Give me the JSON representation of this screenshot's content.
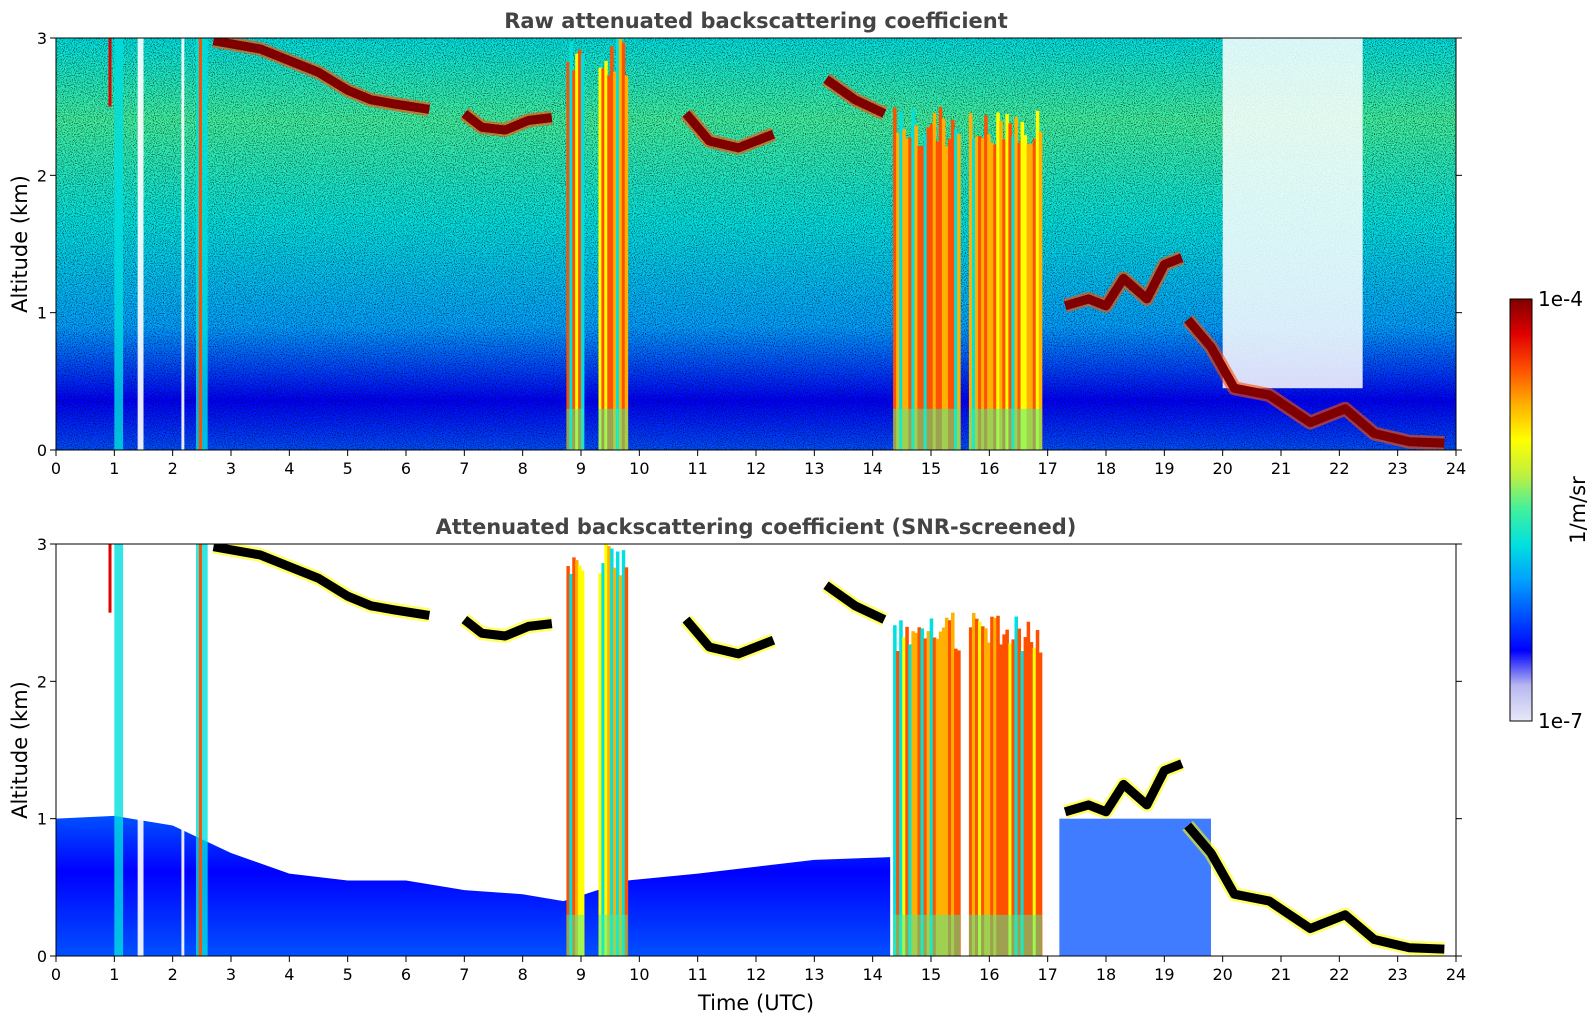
{
  "colormap": {
    "stops": [
      "#e8e8f8",
      "#b8b8f0",
      "#0000ff",
      "#0050ff",
      "#00a0ff",
      "#00e0e0",
      "#40f0a0",
      "#c0f040",
      "#ffff00",
      "#ffb000",
      "#ff5000",
      "#e00000",
      "#800000",
      "#000000"
    ]
  },
  "chart_data": [
    {
      "type": "heatmap",
      "title": "Raw attenuated backscattering coefficient",
      "xlabel": "",
      "ylabel": "Altitude (km)",
      "xlim": [
        0,
        24
      ],
      "ylim": [
        0,
        3
      ],
      "xticks": [
        "0",
        "1",
        "2",
        "3",
        "4",
        "5",
        "6",
        "7",
        "8",
        "9",
        "10",
        "11",
        "12",
        "13",
        "14",
        "15",
        "16",
        "17",
        "18",
        "19",
        "20",
        "21",
        "22",
        "23",
        "24"
      ],
      "yticks": [
        "0",
        "1",
        "2",
        "3"
      ],
      "screened": false,
      "layers": [
        {
          "kind": "cloud_line",
          "x": [
            2.7,
            3.5,
            4.5,
            5.0,
            5.4,
            5.8,
            6.4
          ],
          "y": [
            2.98,
            2.92,
            2.75,
            2.62,
            2.55,
            2.52,
            2.48
          ]
        },
        {
          "kind": "cloud_line",
          "x": [
            7.0,
            7.3,
            7.7,
            8.1,
            8.5
          ],
          "y": [
            2.45,
            2.35,
            2.33,
            2.4,
            2.42
          ]
        },
        {
          "kind": "cloud_line",
          "x": [
            10.8,
            11.2,
            11.7,
            12.3
          ],
          "y": [
            2.45,
            2.25,
            2.2,
            2.3
          ]
        },
        {
          "kind": "cloud_line",
          "x": [
            13.2,
            13.7,
            14.2
          ],
          "y": [
            2.7,
            2.55,
            2.45
          ]
        },
        {
          "kind": "cloud_line",
          "x": [
            17.3,
            17.7,
            18.0,
            18.3,
            18.7,
            19.0,
            19.3
          ],
          "y": [
            1.05,
            1.1,
            1.05,
            1.25,
            1.1,
            1.35,
            1.4
          ]
        },
        {
          "kind": "cloud_line",
          "x": [
            19.4,
            19.8,
            20.2,
            20.8,
            21.5,
            22.1,
            22.6,
            23.2,
            23.8
          ],
          "y": [
            0.95,
            0.75,
            0.45,
            0.4,
            0.2,
            0.3,
            0.12,
            0.06,
            0.05
          ]
        },
        {
          "kind": "plume",
          "x0": 14.35,
          "x1": 15.5,
          "top": 2.5
        },
        {
          "kind": "plume",
          "x0": 15.65,
          "x1": 16.9,
          "top": 2.5
        },
        {
          "kind": "plume",
          "x0": 8.75,
          "x1": 9.05,
          "top": 3.0
        },
        {
          "kind": "plume",
          "x0": 9.3,
          "x1": 9.8,
          "top": 3.0
        }
      ]
    },
    {
      "type": "heatmap",
      "title": "Attenuated backscattering coefficient (SNR-screened)",
      "xlabel": "Time (UTC)",
      "ylabel": "Altitude (km)",
      "xlim": [
        0,
        24
      ],
      "ylim": [
        0,
        3
      ],
      "xticks": [
        "0",
        "1",
        "2",
        "3",
        "4",
        "5",
        "6",
        "7",
        "8",
        "9",
        "10",
        "11",
        "12",
        "13",
        "14",
        "15",
        "16",
        "17",
        "18",
        "19",
        "20",
        "21",
        "22",
        "23",
        "24"
      ],
      "yticks": [
        "0",
        "1",
        "2",
        "3"
      ],
      "screened": true
    }
  ],
  "colorbar": {
    "label": "1/m/sr",
    "max_label": "1e-4",
    "min_label": "1e-7"
  }
}
